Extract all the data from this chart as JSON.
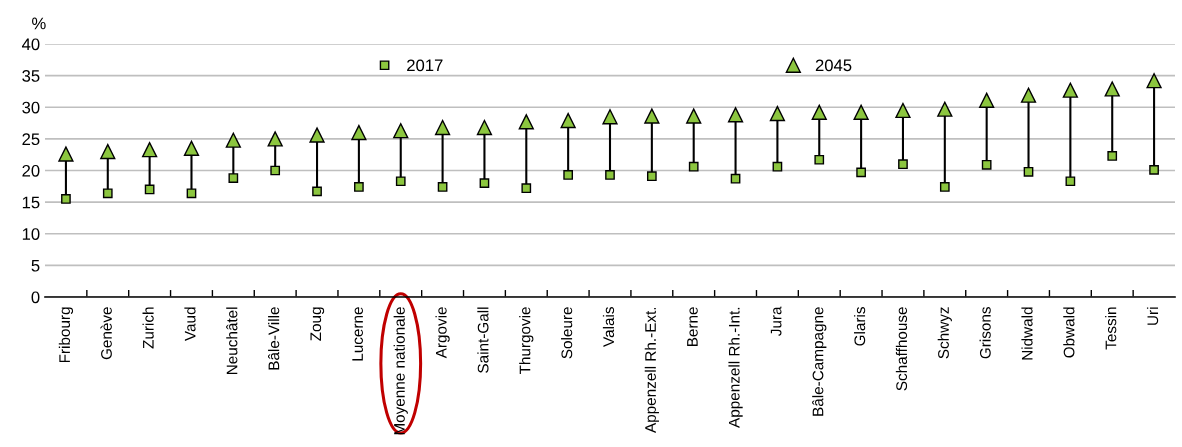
{
  "chart_data": {
    "type": "scatter",
    "ylabel": "%",
    "categories": [
      "Fribourg",
      "Genève",
      "Zurich",
      "Vaud",
      "Neuchâtel",
      "Bâle-Ville",
      "Zoug",
      "Lucerne",
      "Moyenne nationale",
      "Argovie",
      "Saint-Gall",
      "Thurgovie",
      "Soleure",
      "Valais",
      "Appenzell Rh.-Ext.",
      "Berne",
      "Appenzell Rh.-Int.",
      "Jura",
      "Bâle-Campagne",
      "Glaris",
      "Schaffhouse",
      "Schwyz",
      "Grisons",
      "Nidwald",
      "Obwald",
      "Tessin",
      "Uri"
    ],
    "series": [
      {
        "name": "2017",
        "color": "#8cc63f",
        "marker": "square",
        "values": [
          15.5,
          16.4,
          17.0,
          16.4,
          18.8,
          20.0,
          16.7,
          17.4,
          18.3,
          17.4,
          18.0,
          17.2,
          19.3,
          19.3,
          19.1,
          20.6,
          18.7,
          20.6,
          21.7,
          19.7,
          21.0,
          17.4,
          20.9,
          19.8,
          18.3,
          22.3,
          20.1
        ],
        "type": "scatter"
      },
      {
        "name": "2045",
        "color": "#8cc63f",
        "marker": "triangle",
        "values": [
          22.6,
          23.0,
          23.3,
          23.5,
          24.8,
          25.0,
          25.6,
          26.0,
          26.3,
          26.8,
          26.8,
          27.7,
          27.9,
          28.5,
          28.6,
          28.6,
          28.8,
          29.0,
          29.2,
          29.2,
          29.5,
          29.7,
          31.1,
          31.9,
          32.7,
          32.9,
          34.2
        ]
      }
    ],
    "ylim": [
      0,
      40
    ],
    "yticks": [
      0,
      5,
      10,
      15,
      20,
      25,
      30,
      35,
      40
    ],
    "grid": "y",
    "legend": "top"
  }
}
